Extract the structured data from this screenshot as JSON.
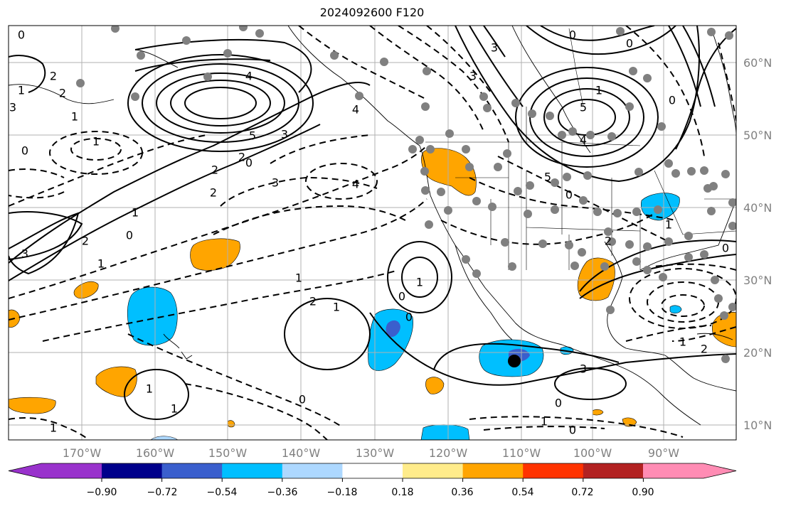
{
  "title": "2024092600 F120",
  "lon_labels": [
    "170°W",
    "160°W",
    "150°W",
    "140°W",
    "130°W",
    "120°W",
    "110°W",
    "100°W",
    "90°W"
  ],
  "lat_labels": [
    "60°N",
    "50°N",
    "40°N",
    "30°N",
    "20°N",
    "10°N"
  ],
  "colorbar": {
    "ticks": [
      "−0.90",
      "−0.72",
      "−0.54",
      "−0.36",
      "−0.18",
      "0.18",
      "0.36",
      "0.54",
      "0.72",
      "0.90"
    ],
    "colors": [
      "#9932cc",
      "#00008b",
      "#3a5fcd",
      "#00bfff",
      "#add8ff",
      "#ffffff",
      "#ffec8b",
      "#ffa500",
      "#ff3300",
      "#b22222",
      "#ff8cb4"
    ]
  },
  "contour_labels": [
    "0",
    "2",
    "2",
    "3",
    "1",
    "1",
    "0",
    "4",
    "5",
    "3",
    "2",
    "0",
    "2",
    "2",
    "3",
    "4",
    "1",
    "0",
    "3",
    "2",
    "1",
    "1",
    "1",
    "2",
    "0",
    "1",
    "0",
    "1",
    "1",
    "0",
    "1",
    "0",
    "0",
    "1",
    "5",
    "4",
    "3",
    "3",
    "4",
    "5",
    "0",
    "2",
    "1",
    "2",
    "3",
    "0",
    "1",
    "0",
    "1",
    "0",
    "0",
    "1"
  ],
  "marker_colors": {
    "station": "#808080",
    "center": "#000000"
  }
}
